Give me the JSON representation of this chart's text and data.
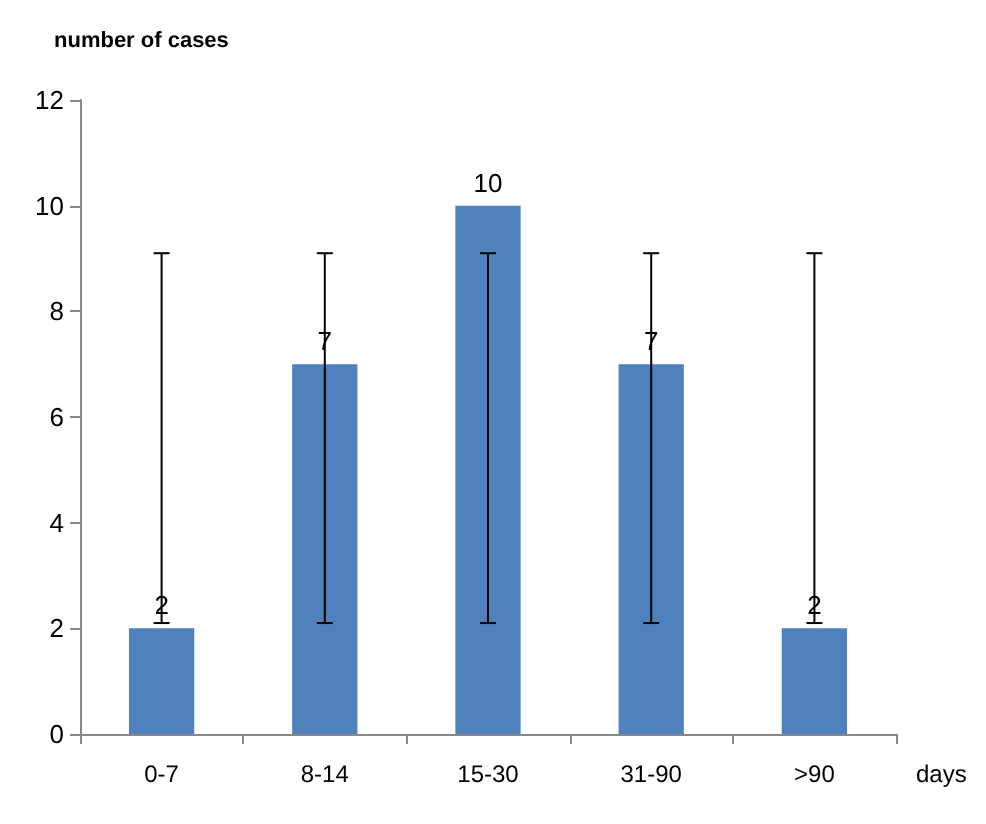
{
  "chart_data": {
    "type": "bar",
    "ylabel": "number of cases",
    "xlabel": "days",
    "categories": [
      "0-7",
      "8-14",
      "15-30",
      "31-90",
      ">90"
    ],
    "values": [
      2,
      7,
      10,
      7,
      2
    ],
    "color": "#4f81bd",
    "errors": [
      [
        2.1,
        9.1
      ],
      [
        2.1,
        9.1
      ],
      [
        2.1,
        9.1
      ],
      [
        2.1,
        9.1
      ],
      [
        2.1,
        9.1
      ]
    ],
    "ylim": [
      0,
      12
    ],
    "yticks": [
      0,
      2,
      4,
      6,
      8,
      10,
      12
    ],
    "grid": false,
    "data_labels": true
  }
}
